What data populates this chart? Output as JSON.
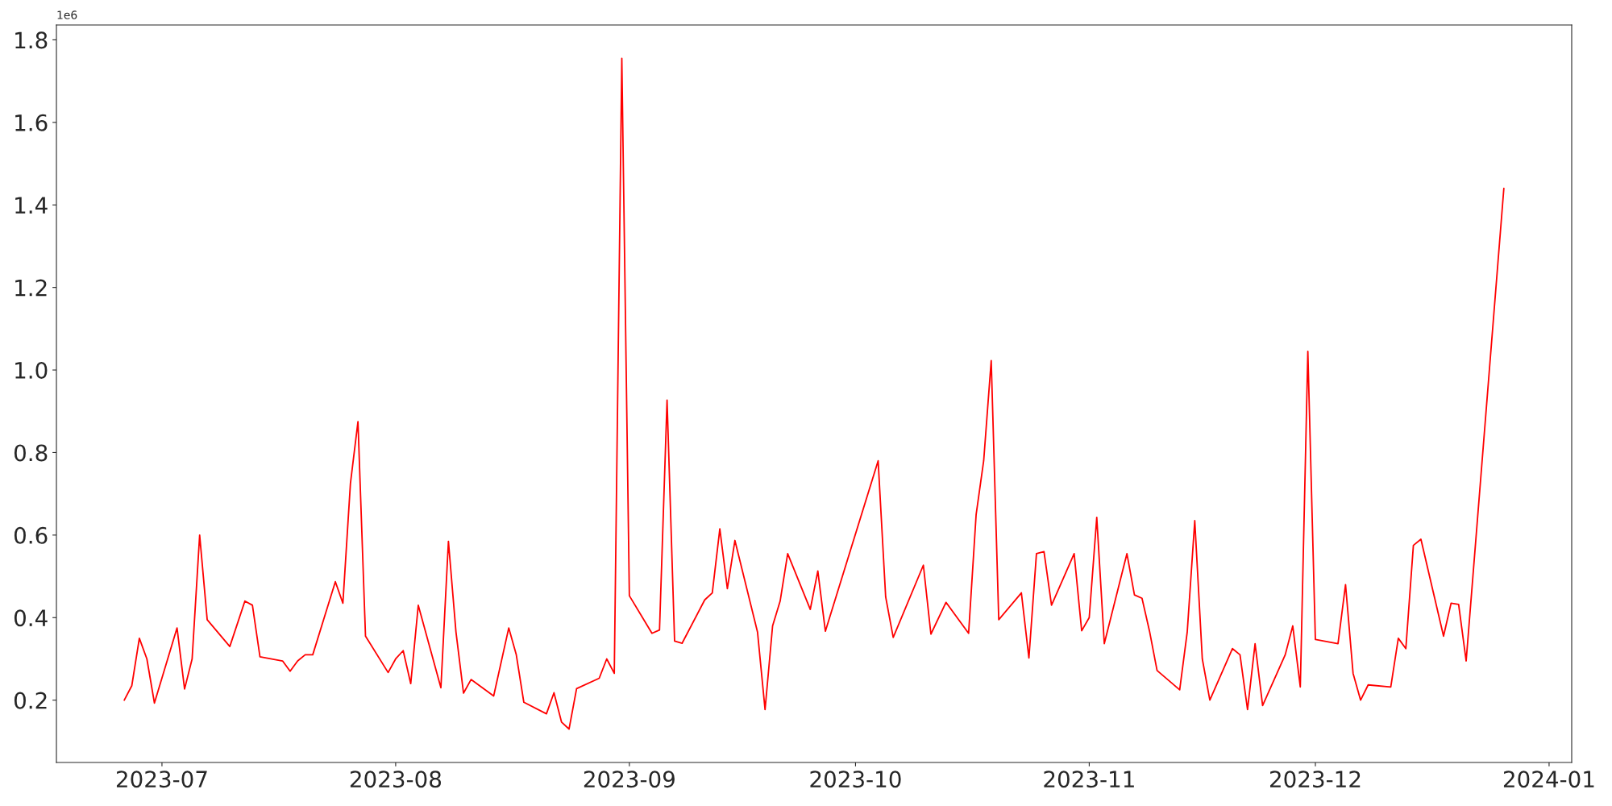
{
  "chart_data": {
    "type": "line",
    "annotations": [
      "1e6"
    ],
    "x": [
      "2023-06-26",
      "2023-06-27",
      "2023-06-28",
      "2023-06-29",
      "2023-06-30",
      "2023-07-03",
      "2023-07-04",
      "2023-07-05",
      "2023-07-06",
      "2023-07-07",
      "2023-07-10",
      "2023-07-12",
      "2023-07-13",
      "2023-07-14",
      "2023-07-17",
      "2023-07-18",
      "2023-07-19",
      "2023-07-20",
      "2023-07-21",
      "2023-07-24",
      "2023-07-25",
      "2023-07-26",
      "2023-07-27",
      "2023-07-28",
      "2023-07-31",
      "2023-08-01",
      "2023-08-02",
      "2023-08-03",
      "2023-08-04",
      "2023-08-07",
      "2023-08-08",
      "2023-08-09",
      "2023-08-10",
      "2023-08-11",
      "2023-08-14",
      "2023-08-16",
      "2023-08-17",
      "2023-08-18",
      "2023-08-21",
      "2023-08-22",
      "2023-08-23",
      "2023-08-24",
      "2023-08-25",
      "2023-08-28",
      "2023-08-29",
      "2023-08-30",
      "2023-08-31",
      "2023-09-01",
      "2023-09-04",
      "2023-09-05",
      "2023-09-06",
      "2023-09-07",
      "2023-09-08",
      "2023-09-11",
      "2023-09-12",
      "2023-09-13",
      "2023-09-14",
      "2023-09-15",
      "2023-09-18",
      "2023-09-19",
      "2023-09-20",
      "2023-09-21",
      "2023-09-22",
      "2023-09-25",
      "2023-09-26",
      "2023-09-27",
      "2023-10-04",
      "2023-10-05",
      "2023-10-06",
      "2023-10-10",
      "2023-10-11",
      "2023-10-13",
      "2023-10-16",
      "2023-10-17",
      "2023-10-18",
      "2023-10-19",
      "2023-10-20",
      "2023-10-23",
      "2023-10-24",
      "2023-10-25",
      "2023-10-26",
      "2023-10-27",
      "2023-10-30",
      "2023-10-31",
      "2023-11-01",
      "2023-11-02",
      "2023-11-03",
      "2023-11-06",
      "2023-11-07",
      "2023-11-08",
      "2023-11-09",
      "2023-11-10",
      "2023-11-13",
      "2023-11-14",
      "2023-11-15",
      "2023-11-16",
      "2023-11-17",
      "2023-11-20",
      "2023-11-21",
      "2023-11-22",
      "2023-11-23",
      "2023-11-24",
      "2023-11-27",
      "2023-11-28",
      "2023-11-29",
      "2023-11-30",
      "2023-12-01",
      "2023-12-04",
      "2023-12-05",
      "2023-12-06",
      "2023-12-07",
      "2023-12-08",
      "2023-12-11",
      "2023-12-12",
      "2023-12-13",
      "2023-12-14",
      "2023-12-15",
      "2023-12-18",
      "2023-12-19",
      "2023-12-20",
      "2023-12-21",
      "2023-12-26"
    ],
    "series": [
      {
        "color": "#ff0000",
        "values": [
          0.2,
          0.235,
          0.35,
          0.3,
          0.193,
          0.375,
          0.227,
          0.3,
          0.6,
          0.395,
          0.33,
          0.44,
          0.43,
          0.305,
          0.295,
          0.27,
          0.295,
          0.31,
          0.31,
          0.487,
          0.435,
          0.725,
          0.875,
          0.355,
          0.267,
          0.3,
          0.32,
          0.24,
          0.43,
          0.23,
          0.585,
          0.365,
          0.217,
          0.25,
          0.21,
          0.375,
          0.31,
          0.195,
          0.167,
          0.218,
          0.147,
          0.13,
          0.228,
          0.253,
          0.3,
          0.265,
          1.755,
          0.453,
          0.362,
          0.37,
          0.927,
          0.343,
          0.338,
          0.443,
          0.46,
          0.615,
          0.47,
          0.587,
          0.365,
          0.177,
          0.38,
          0.44,
          0.555,
          0.42,
          0.513,
          0.367,
          0.78,
          0.45,
          0.352,
          0.527,
          0.36,
          0.437,
          0.362,
          0.65,
          0.78,
          1.023,
          0.395,
          0.46,
          0.302,
          0.555,
          0.56,
          0.43,
          0.555,
          0.368,
          0.4,
          0.643,
          0.337,
          0.555,
          0.455,
          0.447,
          0.367,
          0.272,
          0.225,
          0.365,
          0.635,
          0.3,
          0.2,
          0.325,
          0.31,
          0.177,
          0.337,
          0.187,
          0.31,
          0.38,
          0.232,
          1.045,
          0.347,
          0.337,
          0.48,
          0.265,
          0.2,
          0.237,
          0.232,
          0.35,
          0.325,
          0.575,
          0.59,
          0.355,
          0.435,
          0.432,
          0.295,
          1.44
        ]
      }
    ],
    "xlim": [
      "2023-06-17",
      "2024-01-04"
    ],
    "ylim": [
      0.049,
      1.836
    ],
    "xticks": [
      {
        "value": "2023-07-01",
        "label": "2023-07"
      },
      {
        "value": "2023-08-01",
        "label": "2023-08"
      },
      {
        "value": "2023-09-01",
        "label": "2023-09"
      },
      {
        "value": "2023-10-01",
        "label": "2023-10"
      },
      {
        "value": "2023-11-01",
        "label": "2023-11"
      },
      {
        "value": "2023-12-01",
        "label": "2023-12"
      },
      {
        "value": "2024-01-01",
        "label": "2024-01"
      }
    ],
    "yticks": [
      0.2,
      0.4,
      0.6,
      0.8,
      {
        "value": 1,
        "label": "1.0"
      },
      1.2,
      1.4,
      1.6,
      1.8
    ],
    "grid": false,
    "legend": false,
    "marker": "none",
    "line_style": "solid"
  }
}
